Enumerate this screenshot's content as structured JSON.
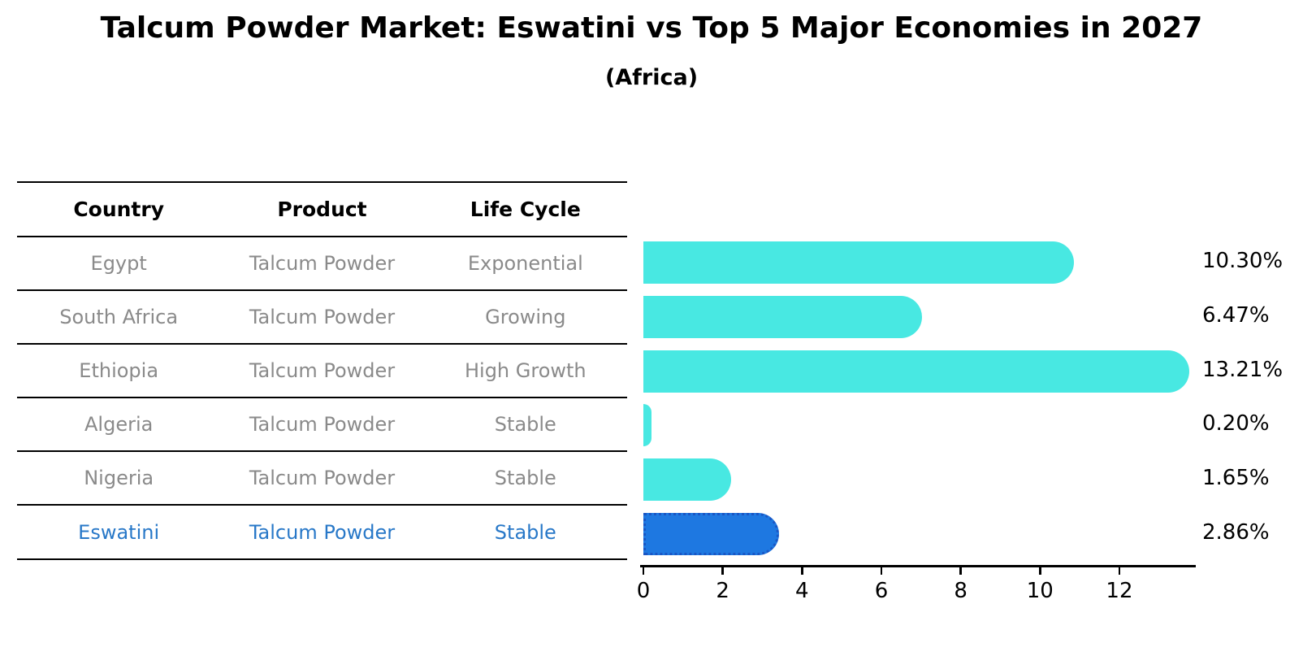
{
  "title": "Talcum Powder Market: Eswatini vs Top 5 Major Economies in 2027",
  "subtitle": "(Africa)",
  "table": {
    "headers": [
      "Country",
      "Product",
      "Life Cycle"
    ],
    "rows": [
      {
        "country": "Egypt",
        "product": "Talcum Powder",
        "life_cycle": "Exponential"
      },
      {
        "country": "South Africa",
        "product": "Talcum Powder",
        "life_cycle": "Growing"
      },
      {
        "country": "Ethiopia",
        "product": "Talcum Powder",
        "life_cycle": "High Growth"
      },
      {
        "country": "Algeria",
        "product": "Talcum Powder",
        "life_cycle": "Stable"
      },
      {
        "country": "Nigeria",
        "product": "Talcum Powder",
        "life_cycle": "Stable"
      },
      {
        "country": "Eswatini",
        "product": "Talcum Powder",
        "life_cycle": "Stable"
      }
    ],
    "highlight_row": "Eswatini"
  },
  "chart_data": {
    "type": "bar",
    "orientation": "horizontal",
    "categories": [
      "Egypt",
      "South Africa",
      "Ethiopia",
      "Algeria",
      "Nigeria",
      "Eswatini"
    ],
    "values": [
      10.3,
      6.47,
      13.21,
      0.2,
      1.65,
      2.86
    ],
    "value_labels": [
      "10.30%",
      "6.47%",
      "13.21%",
      "0.20%",
      "1.65%",
      "2.86%"
    ],
    "unit": "percent CAGR",
    "x_ticks": [
      0,
      2,
      4,
      6,
      8,
      10,
      12
    ],
    "xlim": [
      0,
      13.9
    ],
    "grid": false,
    "legend": false,
    "bar_color": "#48E8E2",
    "highlight_index": 5,
    "highlight_color": "#1E78E1",
    "highlight_border_color": "#1A56C4",
    "highlight_text_color": "#2878C8",
    "axis_color": "#000000",
    "label_color": "#000000",
    "table_text_color": "#8a8a8a"
  }
}
